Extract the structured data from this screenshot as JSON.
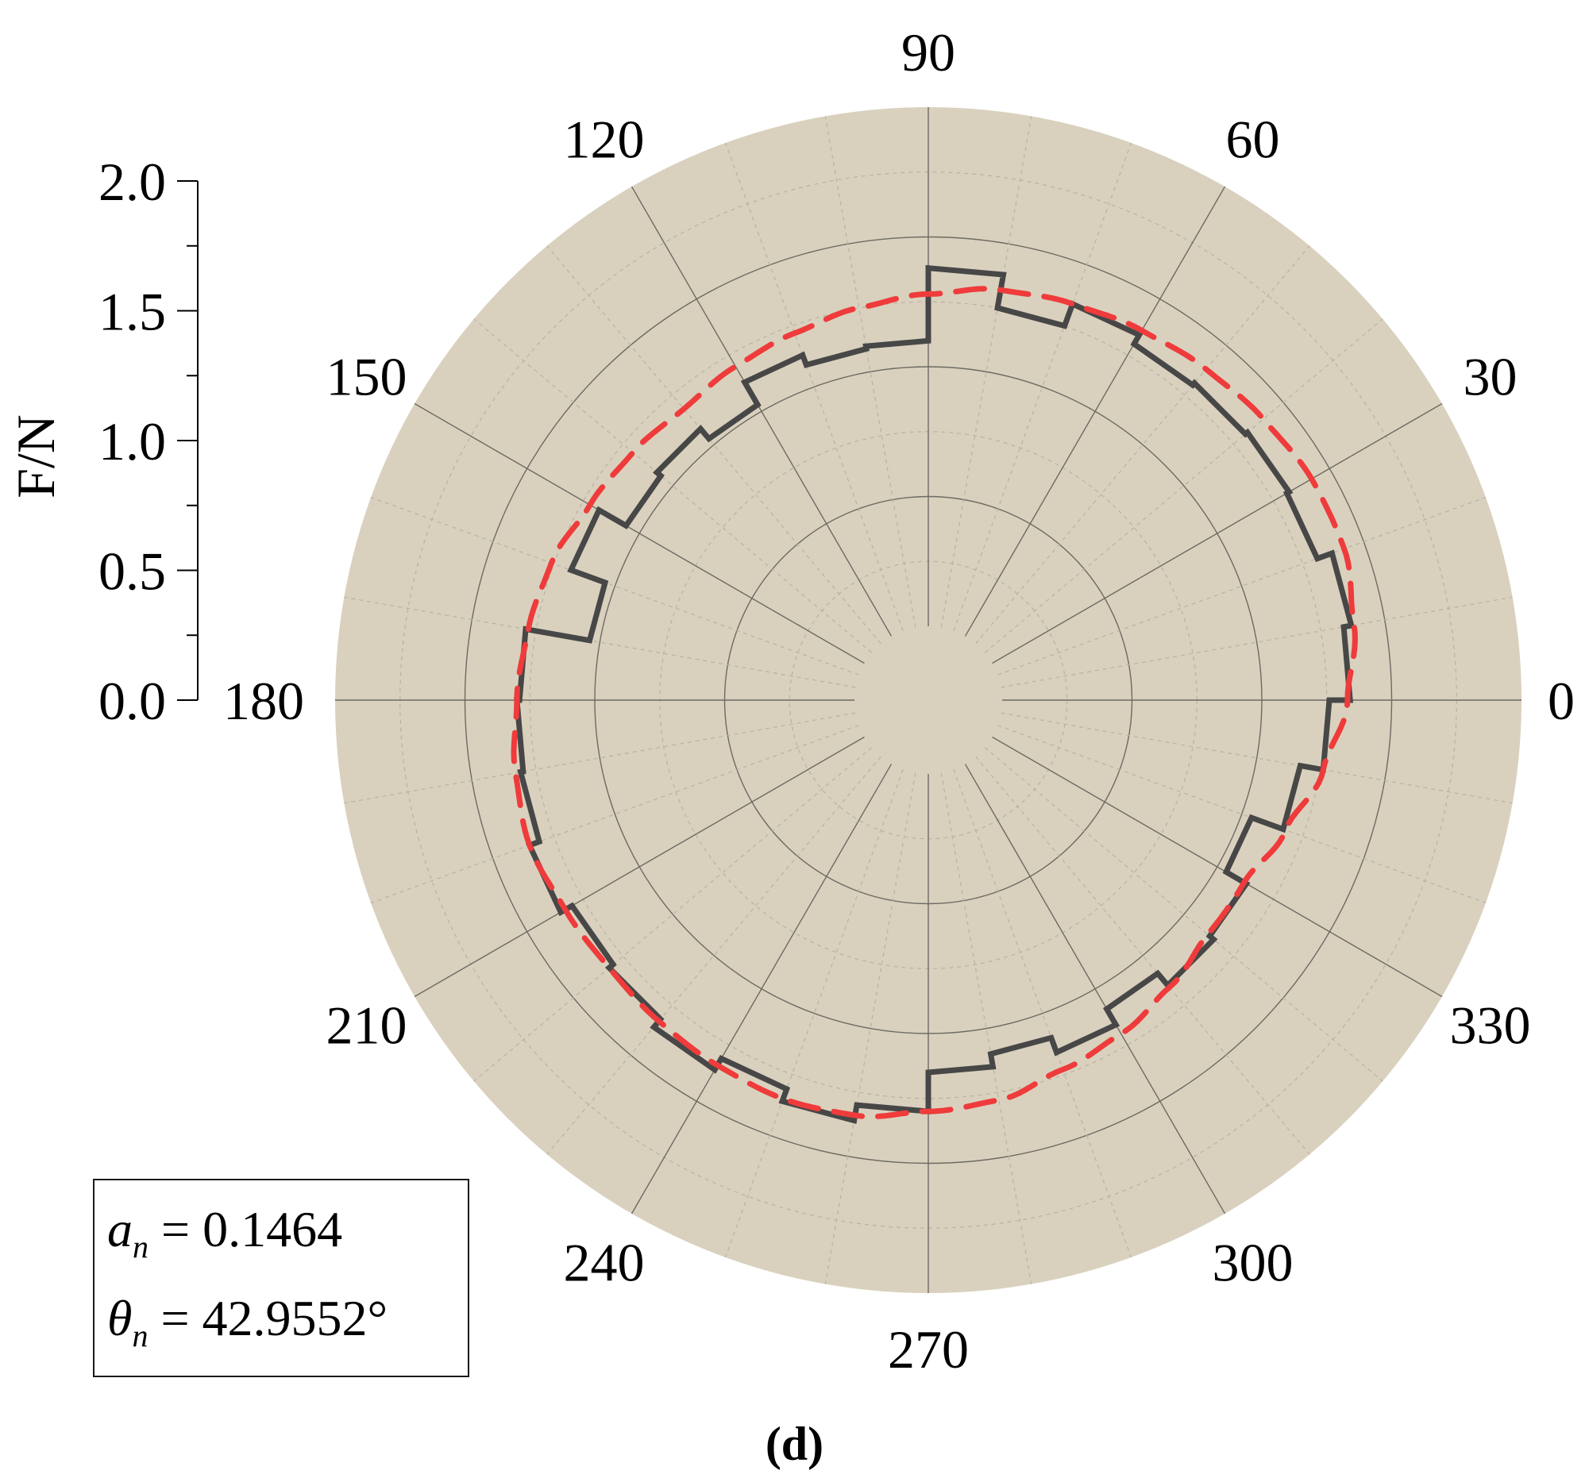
{
  "chart_data": {
    "type": "polar-line",
    "radial_axis": {
      "label": "F/N",
      "range": [
        0,
        2.0
      ],
      "ticks": [
        "0.0",
        "0.5",
        "1.0",
        "1.5",
        "2.0"
      ]
    },
    "angular_axis": {
      "unit": "degrees",
      "ticks": [
        "0",
        "30",
        "60",
        "90",
        "120",
        "150",
        "180",
        "210",
        "240",
        "270",
        "300",
        "330"
      ]
    },
    "series": [
      {
        "style": "solid",
        "color": "#474747",
        "points": [
          {
            "theta": 0,
            "r": 1.34
          },
          {
            "theta": 10,
            "r": 1.37
          },
          {
            "theta": 20,
            "r": 1.31
          },
          {
            "theta": 30,
            "r": 1.32
          },
          {
            "theta": 40,
            "r": 1.31
          },
          {
            "theta": 50,
            "r": 1.3
          },
          {
            "theta": 60,
            "r": 1.34
          },
          {
            "theta": 70,
            "r": 1.25
          },
          {
            "theta": 80,
            "r": 1.38
          },
          {
            "theta": 90,
            "r": 1.1
          },
          {
            "theta": 100,
            "r": 1.09
          },
          {
            "theta": 110,
            "r": 1.13
          },
          {
            "theta": 120,
            "r": 1.03
          },
          {
            "theta": 130,
            "r": 1.08
          },
          {
            "theta": 140,
            "r": 1.06
          },
          {
            "theta": 150,
            "r": 1.18
          },
          {
            "theta": 160,
            "r": 1.04
          },
          {
            "theta": 170,
            "r": 1.29
          },
          {
            "theta": 180,
            "r": 1.3
          },
          {
            "theta": 190,
            "r": 1.31
          },
          {
            "theta": 200,
            "r": 1.35
          },
          {
            "theta": 210,
            "r": 1.3
          },
          {
            "theta": 220,
            "r": 1.32
          },
          {
            "theta": 230,
            "r": 1.36
          },
          {
            "theta": 240,
            "r": 1.31
          },
          {
            "theta": 250,
            "r": 1.36
          },
          {
            "theta": 260,
            "r": 1.3
          },
          {
            "theta": 270,
            "r": 1.15
          },
          {
            "theta": 280,
            "r": 1.1
          },
          {
            "theta": 290,
            "r": 1.16
          },
          {
            "theta": 300,
            "r": 1.09
          },
          {
            "theta": 310,
            "r": 1.15
          },
          {
            "theta": 320,
            "r": 1.13
          },
          {
            "theta": 330,
            "r": 1.04
          },
          {
            "theta": 340,
            "r": 1.17
          },
          {
            "theta": 350,
            "r": 1.26
          }
        ]
      },
      {
        "style": "dashed",
        "color": "#ef3b3b",
        "points": [
          {
            "theta": 0,
            "r": 1.33
          },
          {
            "theta": 10,
            "r": 1.38
          },
          {
            "theta": 20,
            "r": 1.42
          },
          {
            "theta": 30,
            "r": 1.42
          },
          {
            "theta": 40,
            "r": 1.4
          },
          {
            "theta": 50,
            "r": 1.38
          },
          {
            "theta": 60,
            "r": 1.36
          },
          {
            "theta": 70,
            "r": 1.34
          },
          {
            "theta": 80,
            "r": 1.32
          },
          {
            "theta": 90,
            "r": 1.28
          },
          {
            "theta": 100,
            "r": 1.25
          },
          {
            "theta": 110,
            "r": 1.22
          },
          {
            "theta": 120,
            "r": 1.2
          },
          {
            "theta": 130,
            "r": 1.18
          },
          {
            "theta": 140,
            "r": 1.2
          },
          {
            "theta": 150,
            "r": 1.22
          },
          {
            "theta": 160,
            "r": 1.26
          },
          {
            "theta": 170,
            "r": 1.28
          },
          {
            "theta": 180,
            "r": 1.3
          },
          {
            "theta": 190,
            "r": 1.33
          },
          {
            "theta": 200,
            "r": 1.35
          },
          {
            "theta": 210,
            "r": 1.33
          },
          {
            "theta": 220,
            "r": 1.32
          },
          {
            "theta": 230,
            "r": 1.33
          },
          {
            "theta": 240,
            "r": 1.34
          },
          {
            "theta": 250,
            "r": 1.35
          },
          {
            "theta": 260,
            "r": 1.34
          },
          {
            "theta": 270,
            "r": 1.3
          },
          {
            "theta": 280,
            "r": 1.28
          },
          {
            "theta": 290,
            "r": 1.23
          },
          {
            "theta": 300,
            "r": 1.2
          },
          {
            "theta": 310,
            "r": 1.16
          },
          {
            "theta": 320,
            "r": 1.12
          },
          {
            "theta": 330,
            "r": 1.12
          },
          {
            "theta": 340,
            "r": 1.18
          },
          {
            "theta": 350,
            "r": 1.26
          }
        ]
      }
    ],
    "grid": true,
    "background_color": "#d9d1be"
  },
  "annotation": {
    "a_symbol": "a",
    "a_sub": "n",
    "a_value": "= 0.1464",
    "theta_symbol": "θ",
    "theta_sub": "n",
    "theta_value": "= 42.9552°"
  },
  "panel_label": "(d)"
}
